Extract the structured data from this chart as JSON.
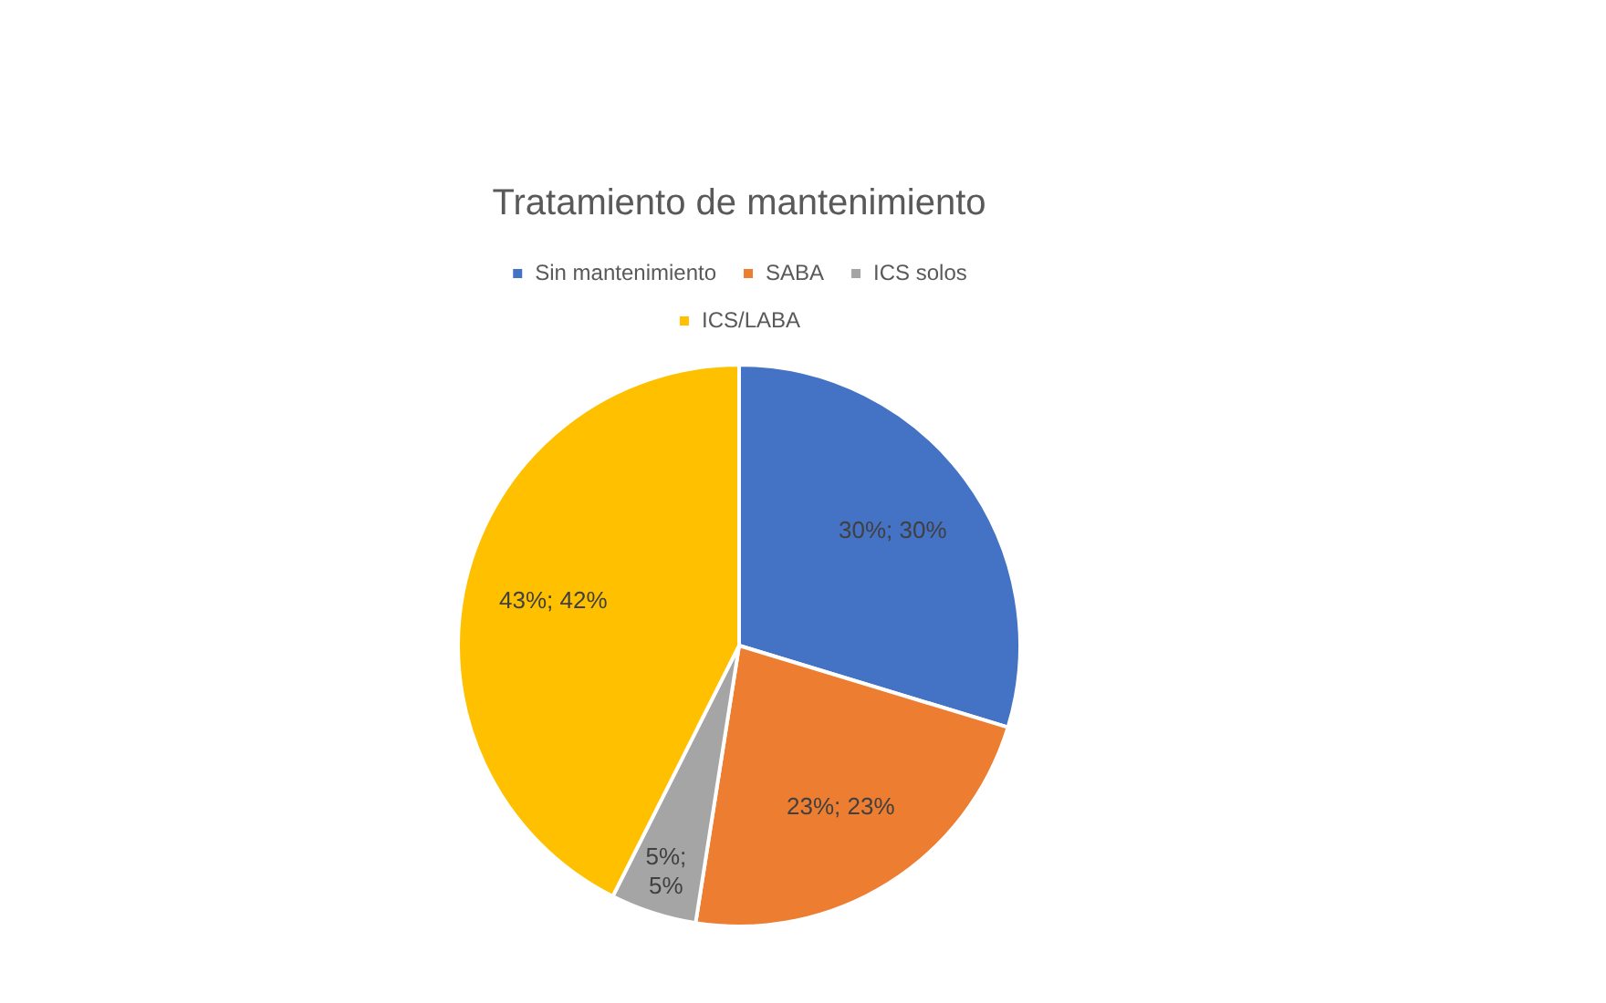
{
  "chart_data": {
    "type": "pie",
    "title": "Tratamiento de mantenimiento",
    "categories": [
      "Sin mantenimiento",
      "SABA",
      "ICS solos",
      "ICS/LABA"
    ],
    "values": [
      30,
      23,
      5,
      43
    ],
    "colors": [
      "#4472c4",
      "#ed7d31",
      "#a5a5a5",
      "#ffc000"
    ],
    "value_labels": [
      "30%; 30%",
      "23%; 23%",
      "5%; 5%",
      "43%; 42%"
    ],
    "legend": "top"
  }
}
